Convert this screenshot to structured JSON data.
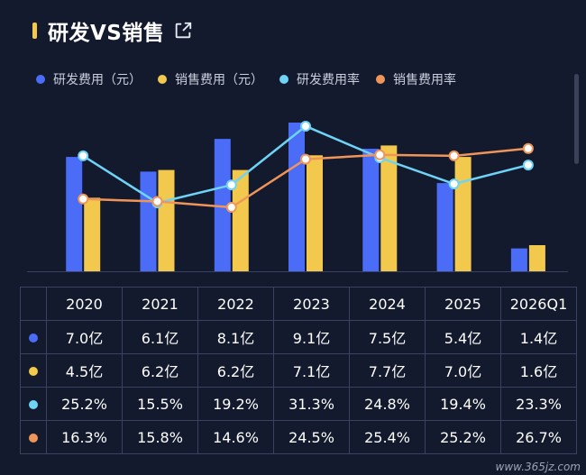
{
  "header": {
    "title": "研发VS销售"
  },
  "colors": {
    "rd_expense": "#4a6cf7",
    "sales_expense": "#f2c94c",
    "rd_rate": "#6ed3f5",
    "sales_rate": "#f0955a"
  },
  "legend": [
    {
      "label": "研发费用（元）",
      "color": "#4a6cf7"
    },
    {
      "label": "销售费用（元）",
      "color": "#f2c94c"
    },
    {
      "label": "研发费用率",
      "color": "#6ed3f5"
    },
    {
      "label": "销售费用率",
      "color": "#f0955a"
    }
  ],
  "chart_data": {
    "type": "bar",
    "categories": [
      "2020",
      "2021",
      "2022",
      "2023",
      "2024",
      "2025",
      "2026Q1"
    ],
    "series": [
      {
        "name": "研发费用（元）",
        "type": "bar",
        "values": [
          7.0,
          6.1,
          8.1,
          9.1,
          7.5,
          5.4,
          1.4
        ]
      },
      {
        "name": "销售费用（元）",
        "type": "bar",
        "values": [
          4.5,
          6.2,
          6.2,
          7.1,
          7.7,
          7.0,
          1.6
        ]
      },
      {
        "name": "研发费用率",
        "type": "line",
        "values": [
          25.2,
          15.5,
          19.2,
          31.3,
          24.8,
          19.4,
          23.3
        ]
      },
      {
        "name": "销售费用率",
        "type": "line",
        "values": [
          16.3,
          15.8,
          14.6,
          24.5,
          25.4,
          25.2,
          26.7
        ]
      }
    ],
    "bar_ylim": [
      0,
      9.1
    ],
    "line_ylim": [
      0,
      31.3
    ],
    "grid": false,
    "legend_position": "top"
  },
  "table": {
    "years": [
      "2020",
      "2021",
      "2022",
      "2023",
      "2024",
      "2025",
      "2026Q1"
    ],
    "rows": [
      {
        "color": "#4a6cf7",
        "cells": [
          "7.0亿",
          "6.1亿",
          "8.1亿",
          "9.1亿",
          "7.5亿",
          "5.4亿",
          "1.4亿"
        ]
      },
      {
        "color": "#f2c94c",
        "cells": [
          "4.5亿",
          "6.2亿",
          "6.2亿",
          "7.1亿",
          "7.7亿",
          "7.0亿",
          "1.6亿"
        ]
      },
      {
        "color": "#6ed3f5",
        "cells": [
          "25.2%",
          "15.5%",
          "19.2%",
          "31.3%",
          "24.8%",
          "19.4%",
          "23.3%"
        ]
      },
      {
        "color": "#f0955a",
        "cells": [
          "16.3%",
          "15.8%",
          "14.6%",
          "24.5%",
          "25.4%",
          "25.2%",
          "26.7%"
        ]
      }
    ]
  },
  "watermark": "www.365jz.com"
}
